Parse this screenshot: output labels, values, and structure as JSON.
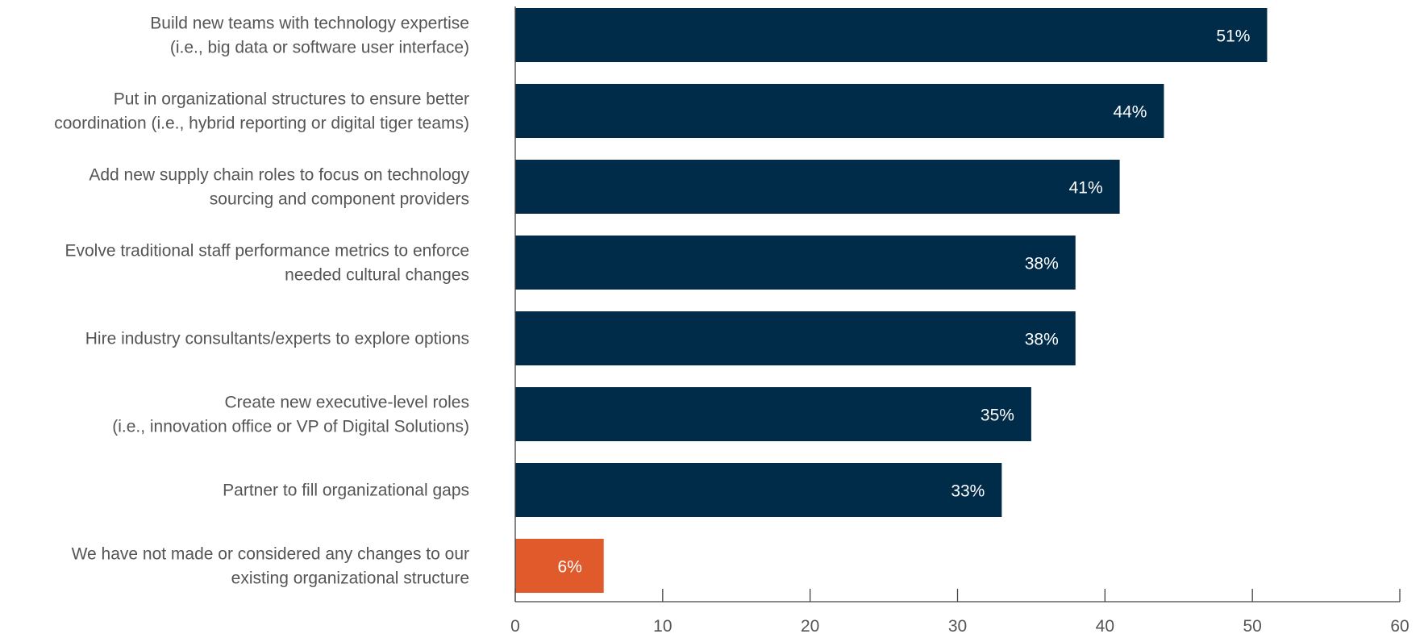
{
  "chart_data": {
    "type": "bar",
    "orientation": "horizontal",
    "categories": [
      [
        "Build new teams with technology expertise",
        "(i.e., big data or software user interface)"
      ],
      [
        "Put in organizational structures to ensure better",
        "coordination (i.e., hybrid reporting or digital tiger teams)"
      ],
      [
        "Add new supply chain roles to focus on technology",
        "sourcing and component providers"
      ],
      [
        "Evolve traditional staff performance metrics to enforce",
        "needed cultural changes"
      ],
      [
        "Hire industry consultants/experts to explore options"
      ],
      [
        "Create new executive-level roles",
        "(i.e., innovation office or VP of Digital Solutions)"
      ],
      [
        "Partner to fill organizational gaps"
      ],
      [
        "We have not made or considered any changes to our",
        "existing organizational structure"
      ]
    ],
    "values": [
      51,
      44,
      41,
      38,
      38,
      35,
      33,
      6
    ],
    "value_labels": [
      "51%",
      "44%",
      "41%",
      "38%",
      "38%",
      "35%",
      "33%",
      "6%"
    ],
    "bar_colors": [
      "#002b49",
      "#002b49",
      "#002b49",
      "#002b49",
      "#002b49",
      "#002b49",
      "#002b49",
      "#e05a2b"
    ],
    "xlim": [
      0,
      60
    ],
    "xticks": [
      0,
      10,
      20,
      30,
      40,
      50,
      60
    ],
    "title": "",
    "xlabel": "",
    "ylabel": "",
    "grid": false,
    "legend": "none"
  }
}
